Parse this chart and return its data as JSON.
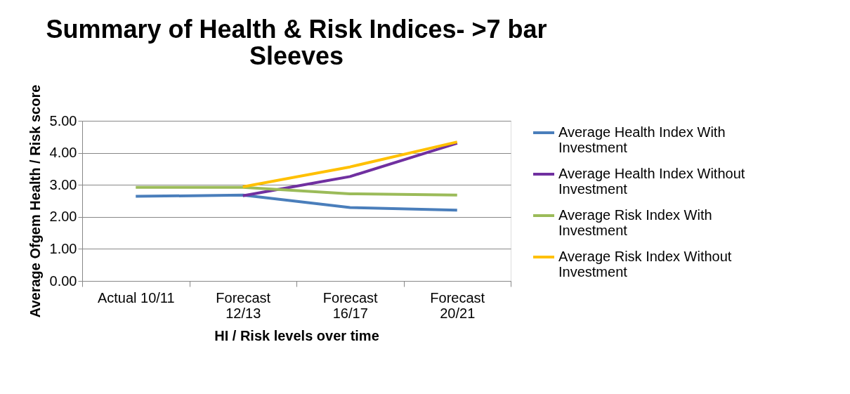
{
  "chart_data": {
    "type": "line",
    "title": "Summary of Health & Risk Indices- >7 bar Sleeves",
    "xlabel": "HI / Risk levels over time",
    "ylabel": "Average Ofgem Health / Risk score",
    "categories": [
      "Actual 10/11",
      "Forecast 12/13",
      "Forecast 16/17",
      "Forecast 20/21"
    ],
    "series": [
      {
        "name": "Average Health Index With Investment",
        "color": "#4a7ebb",
        "values": [
          2.64,
          2.68,
          2.29,
          2.21
        ]
      },
      {
        "name": "Average Health Index Without Investment",
        "color": "#7030a0",
        "values": [
          null,
          2.66,
          3.26,
          4.3
        ]
      },
      {
        "name": "Average Risk Index With Investment",
        "color": "#9bbb59",
        "values": [
          2.92,
          2.92,
          2.72,
          2.68
        ]
      },
      {
        "name": "Average Risk Index Without Investment",
        "color": "#ffc000",
        "values": [
          null,
          2.94,
          3.56,
          4.34
        ]
      }
    ],
    "ylim": [
      0,
      5
    ],
    "yticks": [
      {
        "value": 0,
        "label": "0.00"
      },
      {
        "value": 1,
        "label": "1.00"
      },
      {
        "value": 2,
        "label": "2.00"
      },
      {
        "value": 3,
        "label": "3.00"
      },
      {
        "value": 4,
        "label": "4.00"
      },
      {
        "value": 5,
        "label": "5.00"
      }
    ],
    "grid": "y",
    "legend": "right",
    "marker": "none",
    "line_style": "solid"
  }
}
